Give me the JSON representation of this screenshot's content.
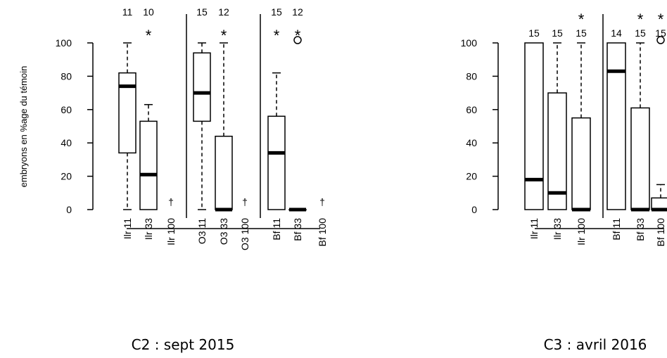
{
  "chart_data": [
    {
      "type": "boxplot",
      "caption": "C2 : sept 2015",
      "ylabel": "embryons en %age du témoin",
      "ylim": [
        0,
        100
      ],
      "yticks": [
        0,
        20,
        40,
        60,
        80,
        100
      ],
      "groups": [
        {
          "label": "Ilr 11",
          "n": "11",
          "star": "",
          "min": 0,
          "q1": 34,
          "median": 74,
          "q3": 82,
          "max": 100,
          "outliers": []
        },
        {
          "label": "Ilr 33",
          "n": "10",
          "star": "*",
          "min": 0,
          "q1": 0,
          "median": 21,
          "q3": 53,
          "max": 63,
          "outliers": []
        },
        {
          "label": "Ilr 100",
          "n": "",
          "star": "",
          "dagger": "†"
        },
        {
          "label": "O3 11",
          "n": "15",
          "star": "",
          "min": 0,
          "q1": 53,
          "median": 70,
          "q3": 94,
          "max": 100,
          "outliers": []
        },
        {
          "label": "O3 33",
          "n": "12",
          "star": "*",
          "min": 0,
          "q1": 0,
          "median": 0,
          "q3": 44,
          "max": 100,
          "outliers": []
        },
        {
          "label": "O3 100",
          "n": "",
          "star": "",
          "dagger": "†"
        },
        {
          "label": "Bf 11",
          "n": "15",
          "star": "*",
          "min": 0,
          "q1": 0,
          "median": 34,
          "q3": 56,
          "max": 82,
          "outliers": []
        },
        {
          "label": "Bf 33",
          "n": "12",
          "star": "*",
          "min": 0,
          "q1": 0,
          "median": 0,
          "q3": 0,
          "max": 0,
          "outliers": [
            100
          ]
        },
        {
          "label": "Bf 100",
          "n": "",
          "star": "",
          "dagger": "†"
        }
      ]
    },
    {
      "type": "boxplot",
      "caption": "C3 : avril 2016",
      "ylabel": "",
      "ylim": [
        0,
        100
      ],
      "yticks": [
        0,
        20,
        40,
        60,
        80,
        100
      ],
      "groups": [
        {
          "label": "Ilr 11",
          "n": "15",
          "star": "",
          "min": 0,
          "q1": 0,
          "median": 18,
          "q3": 100,
          "max": 100,
          "outliers": []
        },
        {
          "label": "Ilr 33",
          "n": "15",
          "star": "",
          "min": 0,
          "q1": 0,
          "median": 10,
          "q3": 70,
          "max": 100,
          "outliers": []
        },
        {
          "label": "Ilr 100",
          "n": "15",
          "star": "*",
          "min": 0,
          "q1": 0,
          "median": 0,
          "q3": 55,
          "max": 100,
          "outliers": []
        },
        {
          "label": "Bf 11",
          "n": "14",
          "star": "",
          "min": 0,
          "q1": 0,
          "median": 83,
          "q3": 100,
          "max": 100,
          "outliers": []
        },
        {
          "label": "Bf 33",
          "n": "15",
          "star": "*",
          "min": 0,
          "q1": 0,
          "median": 0,
          "q3": 61,
          "max": 100,
          "outliers": []
        },
        {
          "label": "Bf 100",
          "n": "15",
          "star": "*",
          "min": 0,
          "q1": 0,
          "median": 0,
          "q3": 7,
          "max": 15,
          "outliers": [
            100
          ]
        }
      ]
    }
  ]
}
